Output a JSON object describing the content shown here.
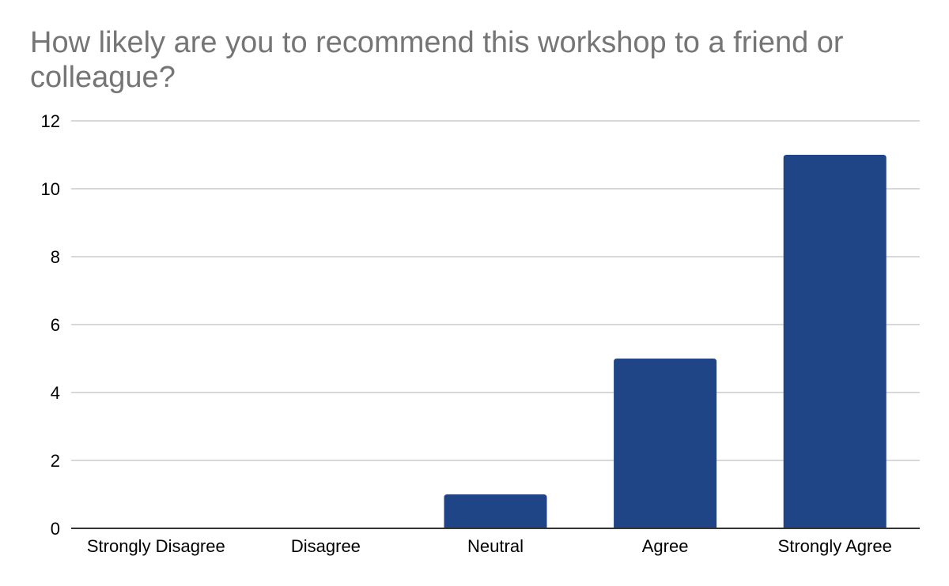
{
  "chart_data": {
    "type": "bar",
    "title": "How likely are you to recommend this workshop to a friend or colleague?",
    "xlabel": "",
    "ylabel": "",
    "categories": [
      "Strongly Disagree",
      "Disagree",
      "Neutral",
      "Agree",
      "Strongly Agree"
    ],
    "values": [
      0,
      0,
      1,
      5,
      11
    ],
    "ylim": [
      0,
      12
    ],
    "yticks": [
      0,
      2,
      4,
      6,
      8,
      10,
      12
    ],
    "grid": true,
    "legend": "none",
    "colors": {
      "bar": "#1f4587",
      "grid": "#cccccc",
      "axis": "#333333",
      "title": "#757575"
    }
  }
}
